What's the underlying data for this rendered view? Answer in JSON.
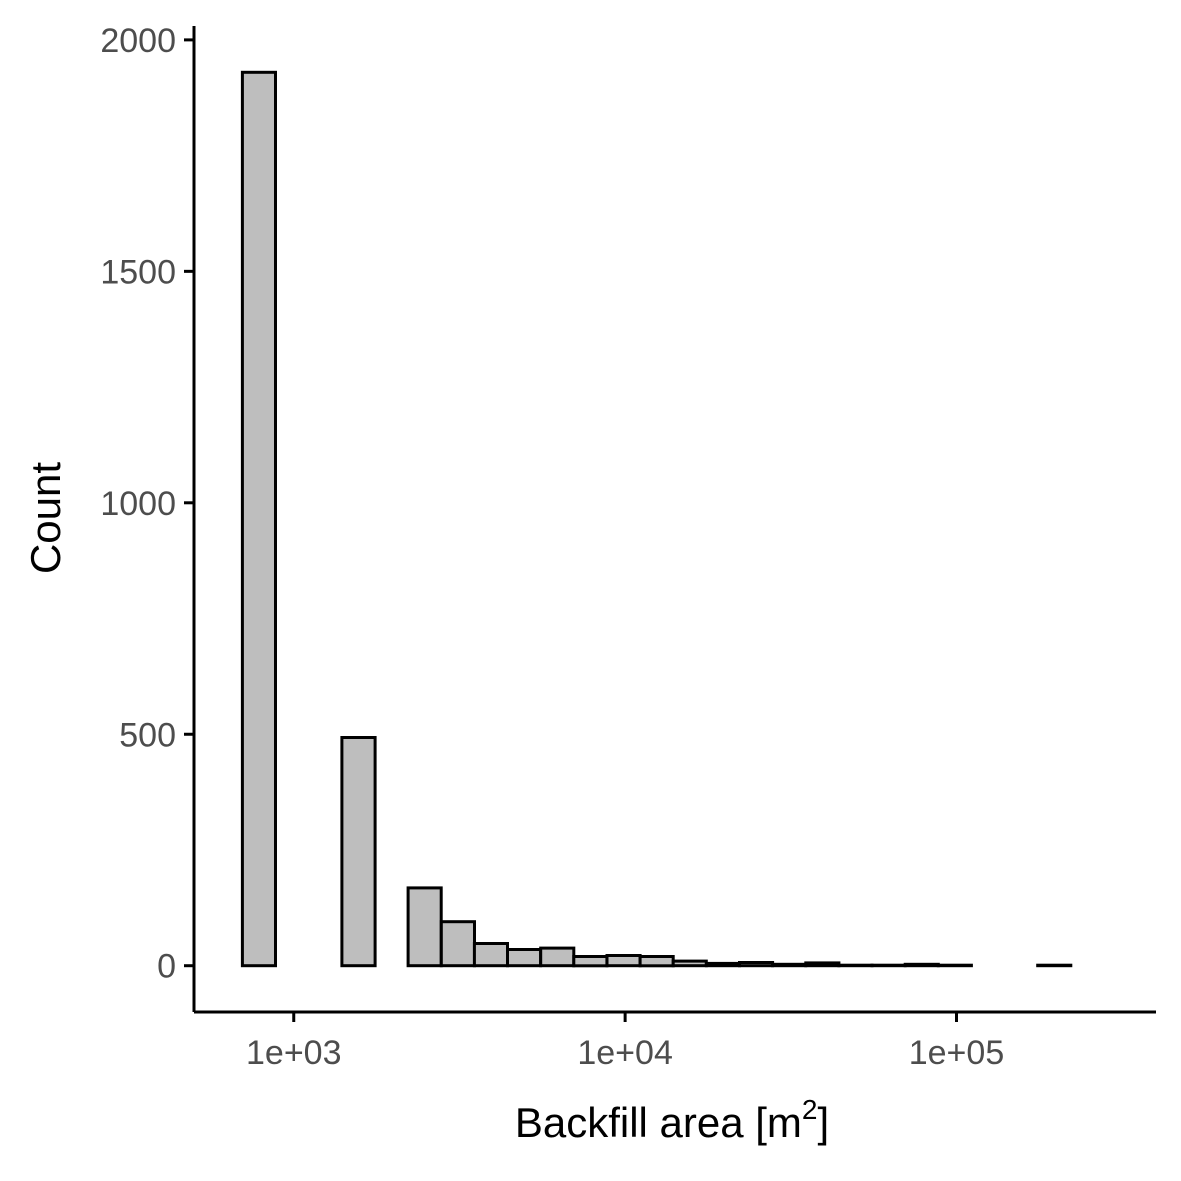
{
  "chart_data": {
    "type": "bar",
    "title": "",
    "xlabel": "Backfill area [m2]",
    "xlabel_parts": {
      "base": "Backfill area [m",
      "superscript": "2",
      "close": "]"
    },
    "ylabel": "Count",
    "x_scale": "log10",
    "xlim": [
      500,
      400000
    ],
    "ylim": [
      -100,
      2030
    ],
    "x_ticks": [
      1000,
      10000,
      100000
    ],
    "x_tick_labels": [
      "1e+03",
      "1e+04",
      "1e+05"
    ],
    "y_ticks": [
      0,
      500,
      1000,
      1500,
      2000
    ],
    "y_tick_labels": [
      "0",
      "500",
      "1000",
      "1500",
      "2000"
    ],
    "bin_width_log10": 0.1,
    "bins": [
      {
        "x_left": 700,
        "x_right": 881,
        "count": 1930
      },
      {
        "x_left": 881,
        "x_right": 1110,
        "count": 0
      },
      {
        "x_left": 1110,
        "x_right": 1397,
        "count": 0
      },
      {
        "x_left": 1397,
        "x_right": 1759,
        "count": 493
      },
      {
        "x_left": 1759,
        "x_right": 2214,
        "count": 0
      },
      {
        "x_left": 2214,
        "x_right": 2787,
        "count": 168
      },
      {
        "x_left": 2787,
        "x_right": 3509,
        "count": 95
      },
      {
        "x_left": 3509,
        "x_right": 4417,
        "count": 48
      },
      {
        "x_left": 4417,
        "x_right": 5561,
        "count": 35
      },
      {
        "x_left": 5561,
        "x_right": 7001,
        "count": 38
      },
      {
        "x_left": 7001,
        "x_right": 8814,
        "count": 20
      },
      {
        "x_left": 8814,
        "x_right": 11096,
        "count": 22
      },
      {
        "x_left": 11096,
        "x_right": 13969,
        "count": 20
      },
      {
        "x_left": 13969,
        "x_right": 17586,
        "count": 10
      },
      {
        "x_left": 17586,
        "x_right": 22139,
        "count": 5
      },
      {
        "x_left": 22139,
        "x_right": 27871,
        "count": 7
      },
      {
        "x_left": 27871,
        "x_right": 35088,
        "count": 3
      },
      {
        "x_left": 35088,
        "x_right": 44173,
        "count": 6
      },
      {
        "x_left": 44173,
        "x_right": 55610,
        "count": 1
      },
      {
        "x_left": 55610,
        "x_right": 70009,
        "count": 1
      },
      {
        "x_left": 70009,
        "x_right": 88136,
        "count": 3
      },
      {
        "x_left": 88136,
        "x_right": 110957,
        "count": 1
      },
      {
        "x_left": 110957,
        "x_right": 139687,
        "count": 0
      },
      {
        "x_left": 139687,
        "x_right": 175855,
        "count": 0
      },
      {
        "x_left": 175855,
        "x_right": 221388,
        "count": 1
      }
    ],
    "grid": false,
    "legend": "none",
    "colors": {
      "bar_fill": "#bebebe",
      "bar_stroke": "#000000",
      "axis": "#000000",
      "tick_text": "#4d4d4d"
    }
  }
}
